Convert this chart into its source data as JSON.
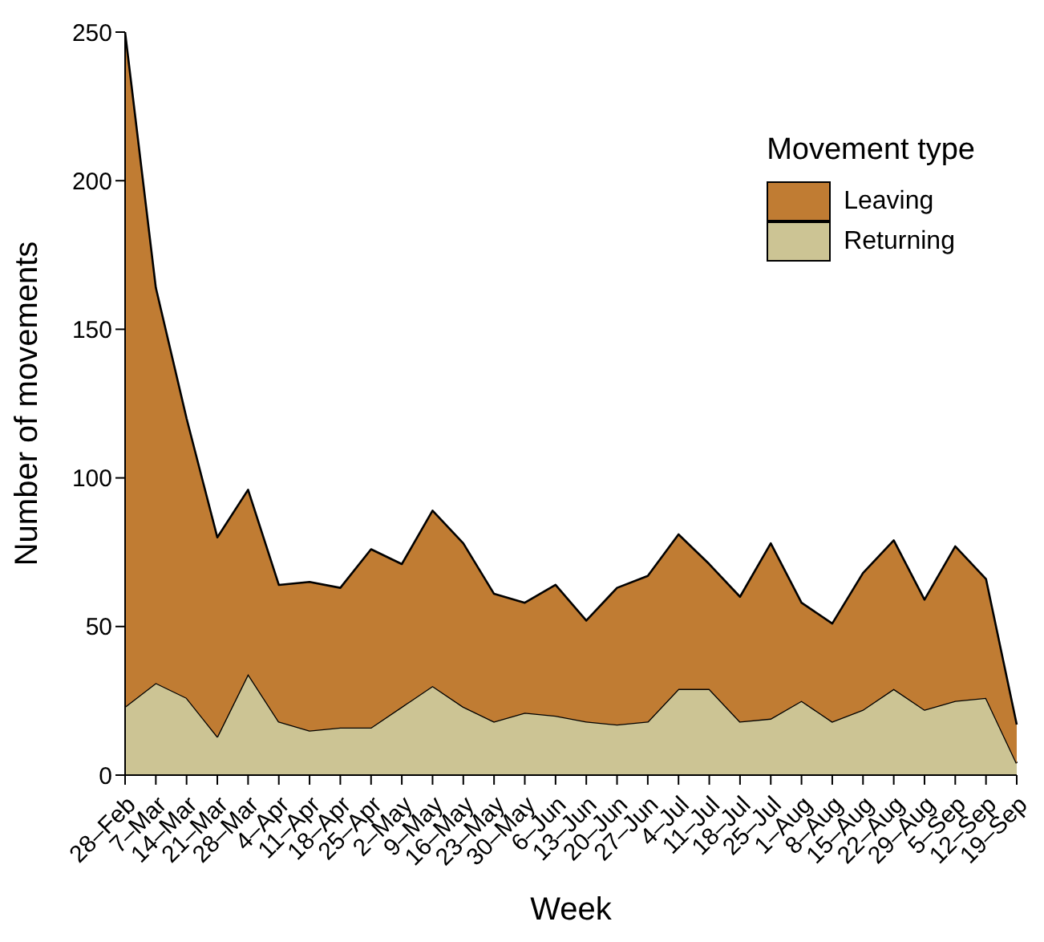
{
  "chart_data": {
    "type": "area",
    "stacked": true,
    "xlabel": "Week",
    "ylabel": "Number of movements",
    "legend_title": "Movement type",
    "legend": "top right",
    "categories": [
      "28–Feb",
      "7–Mar",
      "14–Mar",
      "21–Mar",
      "28–Mar",
      "4–Apr",
      "11–Apr",
      "18–Apr",
      "25–Apr",
      "2–May",
      "9–May",
      "16–May",
      "23–May",
      "30–May",
      "6–Jun",
      "13–Jun",
      "20–Jun",
      "27–Jun",
      "4–Jul",
      "11–Jul",
      "18–Jul",
      "25–Jul",
      "1–Aug",
      "8–Aug",
      "15–Aug",
      "22–Aug",
      "29–Aug",
      "5–Sep",
      "12–Sep",
      "19–Sep"
    ],
    "ylim": [
      0,
      250
    ],
    "yticks": [
      0,
      50,
      100,
      150,
      200,
      250
    ],
    "series": [
      {
        "name": "Returning",
        "color": "#ccc494",
        "values": [
          23,
          31,
          26,
          13,
          34,
          18,
          15,
          16,
          16,
          23,
          30,
          23,
          18,
          21,
          20,
          18,
          17,
          18,
          29,
          29,
          18,
          19,
          25,
          18,
          22,
          29,
          22,
          25,
          26,
          4
        ]
      },
      {
        "name": "Leaving",
        "color": "#c07c33",
        "values": [
          227,
          133,
          94,
          67,
          62,
          46,
          50,
          47,
          60,
          48,
          59,
          55,
          43,
          37,
          44,
          34,
          46,
          49,
          52,
          42,
          42,
          59,
          33,
          33,
          46,
          50,
          37,
          52,
          40,
          13
        ]
      }
    ]
  }
}
